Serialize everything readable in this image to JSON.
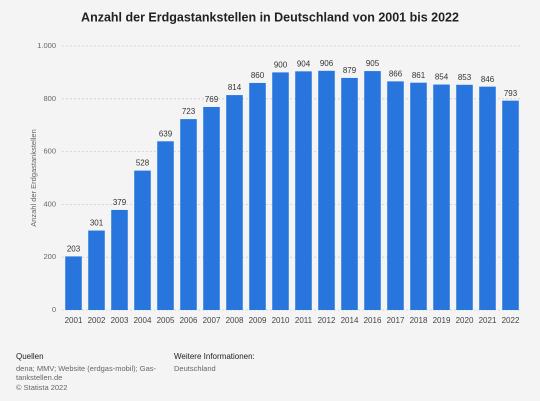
{
  "chart_data": {
    "type": "bar",
    "title": "Anzahl der Erdgastankstellen in Deutschland von 2001 bis 2022",
    "y_label": "Anzahl der Erdgastankstellen",
    "categories": [
      "2001",
      "2002",
      "2003",
      "2004",
      "2005",
      "2006",
      "2007",
      "2008",
      "2009",
      "2010",
      "2011",
      "2012",
      "2014",
      "2016",
      "2017",
      "2018",
      "2019",
      "2020",
      "2021",
      "2022"
    ],
    "values": [
      203,
      301,
      379,
      528,
      639,
      723,
      769,
      814,
      860,
      900,
      904,
      906,
      879,
      905,
      866,
      861,
      854,
      853,
      846,
      793
    ],
    "color": "#2876dd",
    "ylim": [
      0,
      1000
    ],
    "yticks": [
      0,
      200,
      400,
      600,
      800,
      {
        "value": 1000,
        "label": "1.000"
      }
    ],
    "grid": true
  },
  "footer": {
    "sources_heading": "Quellen",
    "sources": "dena; MMV; Website (erdgas-mobil); Gas-tankstellen.de",
    "copyright": "© Statista 2022",
    "info_heading": "Weitere Informationen:",
    "info": "Deutschland"
  }
}
